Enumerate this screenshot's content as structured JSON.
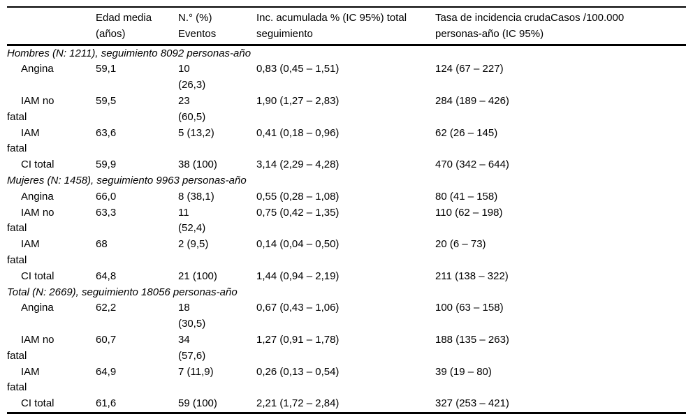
{
  "table": {
    "header": {
      "col0": "",
      "col1": "Edad media\n(años)",
      "col2": "N.° (%)\nEventos",
      "col3": "Inc. acumulada % (IC 95%) total\nseguimiento",
      "col4": "Tasa de incidencia crudaCasos /100.000\npersonas-año (IC 95%)"
    },
    "sections": [
      {
        "header": "Hombres (N: 1211), seguimiento 8092 personas-año",
        "rows": [
          {
            "label": "Angina",
            "edad": "59,1",
            "eventos": "10\n(26,3)",
            "inc": "0,83 (0,45 – 1,51)",
            "tasa": "124 (67 – 227)"
          },
          {
            "label": "IAM no\nfatal",
            "edad": "59,5",
            "eventos": "23\n(60,5)",
            "inc": "1,90 (1,27 – 2,83)",
            "tasa": "284 (189 – 426)"
          },
          {
            "label": "IAM\nfatal",
            "edad": "63,6",
            "eventos": "5 (13,2)",
            "inc": "0,41 (0,18 – 0,96)",
            "tasa": "62 (26 – 145)"
          },
          {
            "label": "CI total",
            "edad": "59,9",
            "eventos": "38 (100)",
            "inc": "3,14 (2,29 – 4,28)",
            "tasa": "470 (342 – 644)"
          }
        ]
      },
      {
        "header": "Mujeres (N: 1458), seguimiento 9963 personas-año",
        "rows": [
          {
            "label": "Angina",
            "edad": "66,0",
            "eventos": "8 (38,1)",
            "inc": "0,55 (0,28 – 1,08)",
            "tasa": "80 (41 – 158)"
          },
          {
            "label": "IAM no\nfatal",
            "edad": "63,3",
            "eventos": "11\n(52,4)",
            "inc": "0,75 (0,42 – 1,35)",
            "tasa": "110 (62 – 198)"
          },
          {
            "label": "IAM\nfatal",
            "edad": "68",
            "eventos": "2 (9,5)",
            "inc": "0,14 (0,04 – 0,50)",
            "tasa": "20 (6 – 73)"
          },
          {
            "label": "CI total",
            "edad": "64,8",
            "eventos": "21 (100)",
            "inc": "1,44 (0,94 – 2,19)",
            "tasa": "211 (138 – 322)"
          }
        ]
      },
      {
        "header": "Total (N: 2669), seguimiento 18056 personas-año",
        "rows": [
          {
            "label": "Angina",
            "edad": "62,2",
            "eventos": "18\n(30,5)",
            "inc": "0,67 (0,43 – 1,06)",
            "tasa": "100 (63 – 158)"
          },
          {
            "label": "IAM no\nfatal",
            "edad": "60,7",
            "eventos": "34\n(57,6)",
            "inc": "1,27 (0,91 – 1,78)",
            "tasa": "188 (135 – 263)"
          },
          {
            "label": "IAM\nfatal",
            "edad": "64,9",
            "eventos": "7 (11,9)",
            "inc": "0,26 (0,13 – 0,54)",
            "tasa": "39 (19 – 80)"
          },
          {
            "label": "CI total",
            "edad": "61,6",
            "eventos": "59 (100)",
            "inc": "2,21 (1,72 – 2,84)",
            "tasa": "327 (253 – 421)"
          }
        ]
      }
    ]
  }
}
